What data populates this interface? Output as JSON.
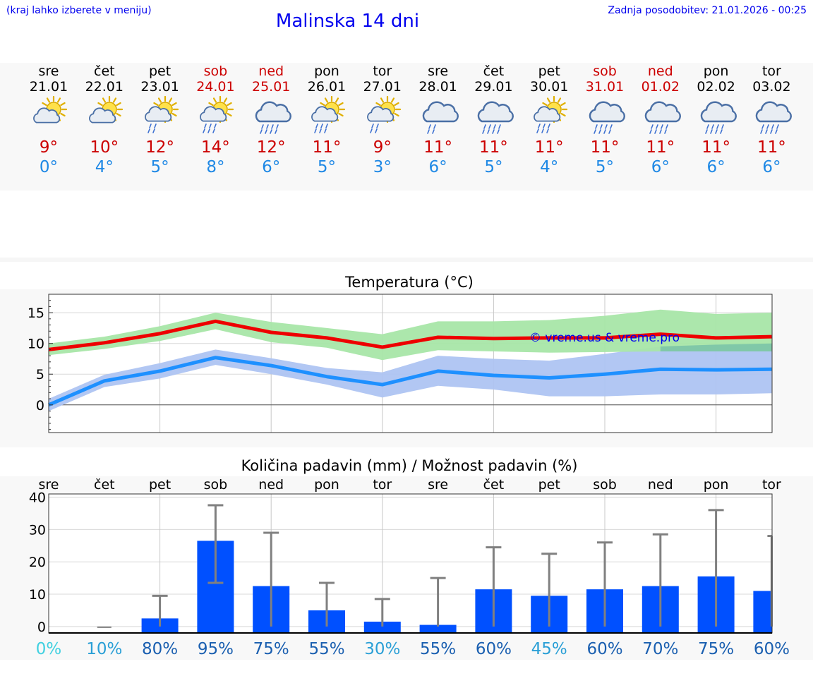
{
  "header": {
    "menu_hint": "(kraj lahko izberete v meniju)",
    "title": "Malinska 14 dni",
    "updated": "Zadnja posodobitev: 21.01.2026 - 00:25"
  },
  "days": [
    {
      "name": "sre",
      "date": "21.01",
      "tmax": "9°",
      "tmin": "0°",
      "icon": "partly-cloudy-sun",
      "weekend": false
    },
    {
      "name": "čet",
      "date": "22.01",
      "tmax": "10°",
      "tmin": "4°",
      "icon": "partly-cloudy-sun",
      "weekend": false
    },
    {
      "name": "pet",
      "date": "23.01",
      "tmax": "12°",
      "tmin": "5°",
      "icon": "sun-cloud-light-rain",
      "weekend": false
    },
    {
      "name": "sob",
      "date": "24.01",
      "tmax": "14°",
      "tmin": "8°",
      "icon": "sun-cloud-rain",
      "weekend": true
    },
    {
      "name": "ned",
      "date": "25.01",
      "tmax": "12°",
      "tmin": "6°",
      "icon": "cloud-rain",
      "weekend": true
    },
    {
      "name": "pon",
      "date": "26.01",
      "tmax": "11°",
      "tmin": "5°",
      "icon": "sun-cloud-rain",
      "weekend": false
    },
    {
      "name": "tor",
      "date": "27.01",
      "tmax": "9°",
      "tmin": "3°",
      "icon": "sun-cloud-light-rain",
      "weekend": false
    },
    {
      "name": "sre",
      "date": "28.01",
      "tmax": "11°",
      "tmin": "6°",
      "icon": "cloud-light-rain",
      "weekend": false
    },
    {
      "name": "čet",
      "date": "29.01",
      "tmax": "11°",
      "tmin": "5°",
      "icon": "cloud-rain",
      "weekend": false
    },
    {
      "name": "pet",
      "date": "30.01",
      "tmax": "11°",
      "tmin": "4°",
      "icon": "sun-cloud-rain",
      "weekend": false
    },
    {
      "name": "sob",
      "date": "31.01",
      "tmax": "11°",
      "tmin": "5°",
      "icon": "cloud-rain",
      "weekend": true
    },
    {
      "name": "ned",
      "date": "01.02",
      "tmax": "11°",
      "tmin": "6°",
      "icon": "cloud-rain",
      "weekend": true
    },
    {
      "name": "pon",
      "date": "02.02",
      "tmax": "11°",
      "tmin": "6°",
      "icon": "cloud-rain",
      "weekend": false
    },
    {
      "name": "tor",
      "date": "03.02",
      "tmax": "11°",
      "tmin": "6°",
      "icon": "cloud-rain",
      "weekend": false
    }
  ],
  "colors": {
    "max_line": "#ee0000",
    "max_band": "#a8e6a8",
    "min_line": "#1e90ff",
    "min_band": "#aec4f2",
    "overlap_band": "#80c8a8",
    "bar": "#0050ff",
    "whisker": "#808080",
    "link": "#0000ee"
  },
  "chart_data": [
    {
      "type": "line",
      "title": "Temperatura (°C)",
      "watermark": "© vreme.us & vreme.pro",
      "x": [
        0,
        1,
        2,
        3,
        4,
        5,
        6,
        7,
        8,
        9,
        10,
        11,
        12,
        13
      ],
      "ylim": [
        -4.5,
        18
      ],
      "yticks": [
        0,
        5,
        10,
        15
      ],
      "series": [
        {
          "name": "max",
          "values": [
            9.0,
            10.1,
            11.6,
            13.6,
            11.8,
            10.9,
            9.4,
            11.0,
            10.8,
            10.9,
            10.9,
            11.5,
            10.9,
            11.1
          ],
          "band_low": [
            8.1,
            9.1,
            10.4,
            12.3,
            10.2,
            9.3,
            7.3,
            8.9,
            8.7,
            8.5,
            8.6,
            8.7,
            8.7,
            8.7
          ],
          "band_high": [
            10.0,
            11.1,
            12.8,
            15.0,
            13.5,
            12.5,
            11.5,
            13.6,
            13.6,
            13.8,
            14.5,
            15.5,
            14.8,
            15.0
          ]
        },
        {
          "name": "min",
          "values": [
            0.0,
            3.9,
            5.5,
            7.7,
            6.4,
            4.6,
            3.3,
            5.5,
            4.8,
            4.4,
            5.0,
            5.8,
            5.7,
            5.8
          ],
          "band_low": [
            -1.0,
            2.9,
            4.3,
            6.5,
            5.0,
            3.3,
            1.2,
            3.1,
            2.5,
            1.4,
            1.4,
            1.7,
            1.7,
            1.9
          ],
          "band_high": [
            1.0,
            4.9,
            6.8,
            9.0,
            7.6,
            6.0,
            5.3,
            8.0,
            7.5,
            7.2,
            8.3,
            9.5,
            9.8,
            10.0
          ]
        }
      ]
    },
    {
      "type": "bar",
      "title": "Količina padavin (mm) / Možnost padavin (%)",
      "categories": [
        "sre",
        "čet",
        "pet",
        "sob",
        "ned",
        "pon",
        "tor",
        "sre",
        "čet",
        "pet",
        "sob",
        "ned",
        "pon",
        "tor"
      ],
      "values": [
        0,
        0,
        2.5,
        26.5,
        12.5,
        5,
        1.5,
        0.5,
        11.5,
        9.5,
        11.5,
        12.5,
        15.5,
        11.0
      ],
      "err_low": [
        0,
        0,
        0,
        13.5,
        0,
        0,
        0,
        0,
        0,
        0,
        0,
        0,
        0,
        0
      ],
      "err_high": [
        0,
        0,
        9.5,
        37.5,
        29,
        13.5,
        8.5,
        15,
        24.5,
        22.5,
        26,
        28.5,
        36,
        28
      ],
      "ylim": [
        -2,
        41
      ],
      "yticks": [
        0,
        10,
        20,
        30,
        40
      ],
      "chance": [
        "0%",
        "10%",
        "80%",
        "95%",
        "75%",
        "55%",
        "30%",
        "55%",
        "60%",
        "45%",
        "60%",
        "70%",
        "75%",
        "60%"
      ],
      "chance_colors": [
        "#40d0e0",
        "#2a9fd6",
        "#1a5fb0",
        "#1a5fb0",
        "#1a5fb0",
        "#1a5fb0",
        "#2a9fd6",
        "#1a5fb0",
        "#1a5fb0",
        "#2a9fd6",
        "#1a5fb0",
        "#1a5fb0",
        "#1a5fb0",
        "#1a5fb0"
      ]
    }
  ]
}
